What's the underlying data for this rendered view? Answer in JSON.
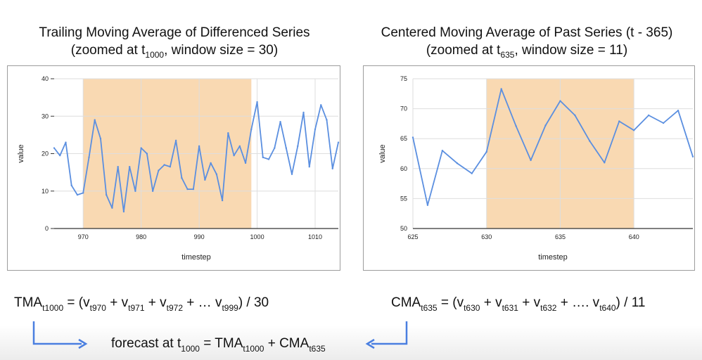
{
  "titles": {
    "left": {
      "line1": "Trailing Moving Average of Differenced Series",
      "line2_pre": "(zoomed at t",
      "line2_sub": "1000",
      "line2_post": ", window size = 30)"
    },
    "right": {
      "line1": "Centered Moving Average of Past Series (t - 365)",
      "line2_pre": "(zoomed at t",
      "line2_sub": "635",
      "line2_post": ", window size = 11)"
    }
  },
  "chart_data": [
    {
      "type": "line",
      "xlabel": "timestep",
      "ylabel": "value",
      "xlim": [
        965,
        1014
      ],
      "ylim": [
        0,
        40
      ],
      "xticks": [
        970,
        980,
        990,
        1000,
        1010
      ],
      "yticks": [
        0,
        10,
        20,
        30,
        40
      ],
      "grid": true,
      "line_color": "#5b8fe0",
      "highlight": {
        "x_start": 970,
        "x_end": 999,
        "color": "#f9d9b2"
      },
      "x": [
        965,
        966,
        967,
        968,
        969,
        970,
        971,
        972,
        973,
        974,
        975,
        976,
        977,
        978,
        979,
        980,
        981,
        982,
        983,
        984,
        985,
        986,
        987,
        988,
        989,
        990,
        991,
        992,
        993,
        994,
        995,
        996,
        997,
        998,
        999,
        1000,
        1001,
        1002,
        1003,
        1004,
        1005,
        1006,
        1007,
        1008,
        1009,
        1010,
        1011,
        1012,
        1013,
        1014
      ],
      "values": [
        21.5,
        19.5,
        23,
        11.5,
        9,
        9.5,
        19,
        29,
        24,
        9,
        5.5,
        16.5,
        4.5,
        16.5,
        10,
        21.5,
        20,
        10,
        15.5,
        17,
        16.5,
        23.5,
        13.5,
        10.5,
        10.5,
        22,
        13,
        17.5,
        14.5,
        7.5,
        25.5,
        19.5,
        22,
        17.5,
        26.5,
        33.8,
        19,
        18.5,
        21.5,
        28.5,
        21.5,
        14.5,
        22,
        31,
        16.5,
        26.5,
        33,
        29,
        16,
        23
      ]
    },
    {
      "type": "line",
      "xlabel": "timestep",
      "ylabel": "value",
      "xlim": [
        625,
        644
      ],
      "ylim": [
        50,
        75
      ],
      "xticks": [
        625,
        630,
        635,
        640
      ],
      "yticks": [
        50,
        55,
        60,
        65,
        70,
        75
      ],
      "grid": true,
      "line_color": "#5b8fe0",
      "highlight": {
        "x_start": 630,
        "x_end": 640,
        "color": "#f9d9b2"
      },
      "x": [
        625,
        626,
        627,
        628,
        629,
        630,
        631,
        632,
        633,
        634,
        635,
        636,
        637,
        638,
        639,
        640,
        641,
        642,
        643,
        644
      ],
      "values": [
        65.2,
        53.9,
        63,
        60.9,
        59.2,
        62.8,
        73.3,
        67.1,
        61.4,
        67.2,
        71.3,
        68.9,
        64.6,
        61,
        67.9,
        66.4,
        68.9,
        67.6,
        69.7,
        62
      ]
    }
  ],
  "formulas": {
    "tma": [
      {
        "t": "TMA"
      },
      {
        "s": "t1000"
      },
      {
        "t": " = (v"
      },
      {
        "s": "t970"
      },
      {
        "t": " + v"
      },
      {
        "s": "t971"
      },
      {
        "t": " + v"
      },
      {
        "s": "t972"
      },
      {
        "t": " + … v"
      },
      {
        "s": "t999"
      },
      {
        "t": ") / 30"
      }
    ],
    "cma": [
      {
        "t": "CMA"
      },
      {
        "s": "t635"
      },
      {
        "t": " = (v"
      },
      {
        "s": "t630"
      },
      {
        "t": " + v"
      },
      {
        "s": "t631"
      },
      {
        "t": " + v"
      },
      {
        "s": "t632"
      },
      {
        "t": " + …. v"
      },
      {
        "s": "t640"
      },
      {
        "t": ") / 11"
      }
    ],
    "forecast": [
      {
        "t": "forecast at  t"
      },
      {
        "s": "1000"
      },
      {
        "t": " = TMA"
      },
      {
        "s": "t1000"
      },
      {
        "t": "  + CMA"
      },
      {
        "s": "t635"
      }
    ]
  },
  "colors": {
    "arrow": "#4a7fe0",
    "grid": "#dedede",
    "axis": "#333333"
  }
}
